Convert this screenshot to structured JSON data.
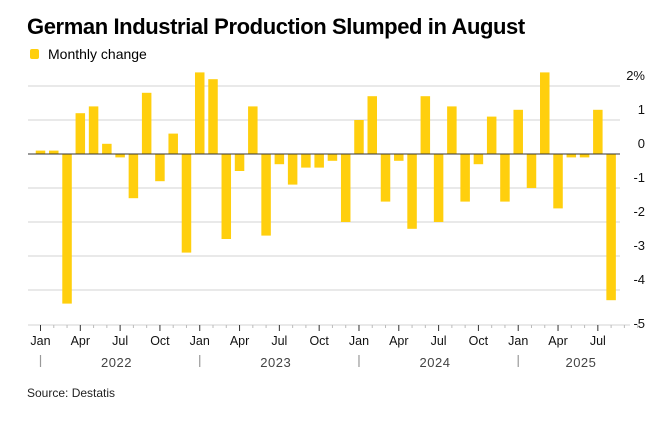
{
  "chart_data": {
    "type": "bar",
    "title": "German Industrial Production Slumped in August",
    "legend": [
      {
        "name": "Monthly change",
        "color": "#FFCF0D"
      }
    ],
    "legend_position": "top-left",
    "xlabel": "",
    "ylabel": "",
    "y_unit_suffix": "%",
    "ylim": [
      -5,
      2
    ],
    "yticks": [
      2,
      1,
      0,
      -1,
      -2,
      -3,
      -4,
      -5
    ],
    "ytick_labels": [
      "2%",
      "1",
      "0",
      "-1",
      "-2",
      "-3",
      "-4",
      "-5"
    ],
    "grid": true,
    "x_month_labels": [
      "Jan",
      "Apr",
      "Jul",
      "Oct"
    ],
    "x_years": [
      "2022",
      "2023",
      "2024",
      "2025"
    ],
    "categories": [
      "Jan 2022",
      "Feb 2022",
      "Mar 2022",
      "Apr 2022",
      "May 2022",
      "Jun 2022",
      "Jul 2022",
      "Aug 2022",
      "Sep 2022",
      "Oct 2022",
      "Nov 2022",
      "Dec 2022",
      "Jan 2023",
      "Feb 2023",
      "Mar 2023",
      "Apr 2023",
      "May 2023",
      "Jun 2023",
      "Jul 2023",
      "Aug 2023",
      "Sep 2023",
      "Oct 2023",
      "Nov 2023",
      "Dec 2023",
      "Jan 2024",
      "Feb 2024",
      "Mar 2024",
      "Apr 2024",
      "May 2024",
      "Jun 2024",
      "Jul 2024",
      "Aug 2024",
      "Sep 2024",
      "Oct 2024",
      "Nov 2024",
      "Dec 2024",
      "Jan 2025",
      "Feb 2025",
      "Mar 2025",
      "Apr 2025",
      "May 2025",
      "Jun 2025",
      "Jul 2025",
      "Aug 2025"
    ],
    "series": [
      {
        "name": "Monthly change",
        "color": "#FFCF0D",
        "values": [
          0.1,
          0.1,
          -4.4,
          1.2,
          1.4,
          0.3,
          -0.1,
          -1.3,
          1.8,
          -0.8,
          0.6,
          -2.9,
          2.4,
          2.2,
          -2.5,
          -0.5,
          1.4,
          -2.4,
          -0.3,
          -0.9,
          -0.4,
          -0.4,
          -0.2,
          -2.0,
          1.0,
          1.7,
          -1.4,
          -0.2,
          -2.2,
          1.7,
          -2.0,
          1.4,
          -1.4,
          -0.3,
          1.1,
          -1.4,
          1.3,
          -1.0,
          2.4,
          -1.6,
          -0.1,
          -0.1,
          1.3,
          -4.3
        ]
      }
    ]
  },
  "source": "Source: Destatis"
}
